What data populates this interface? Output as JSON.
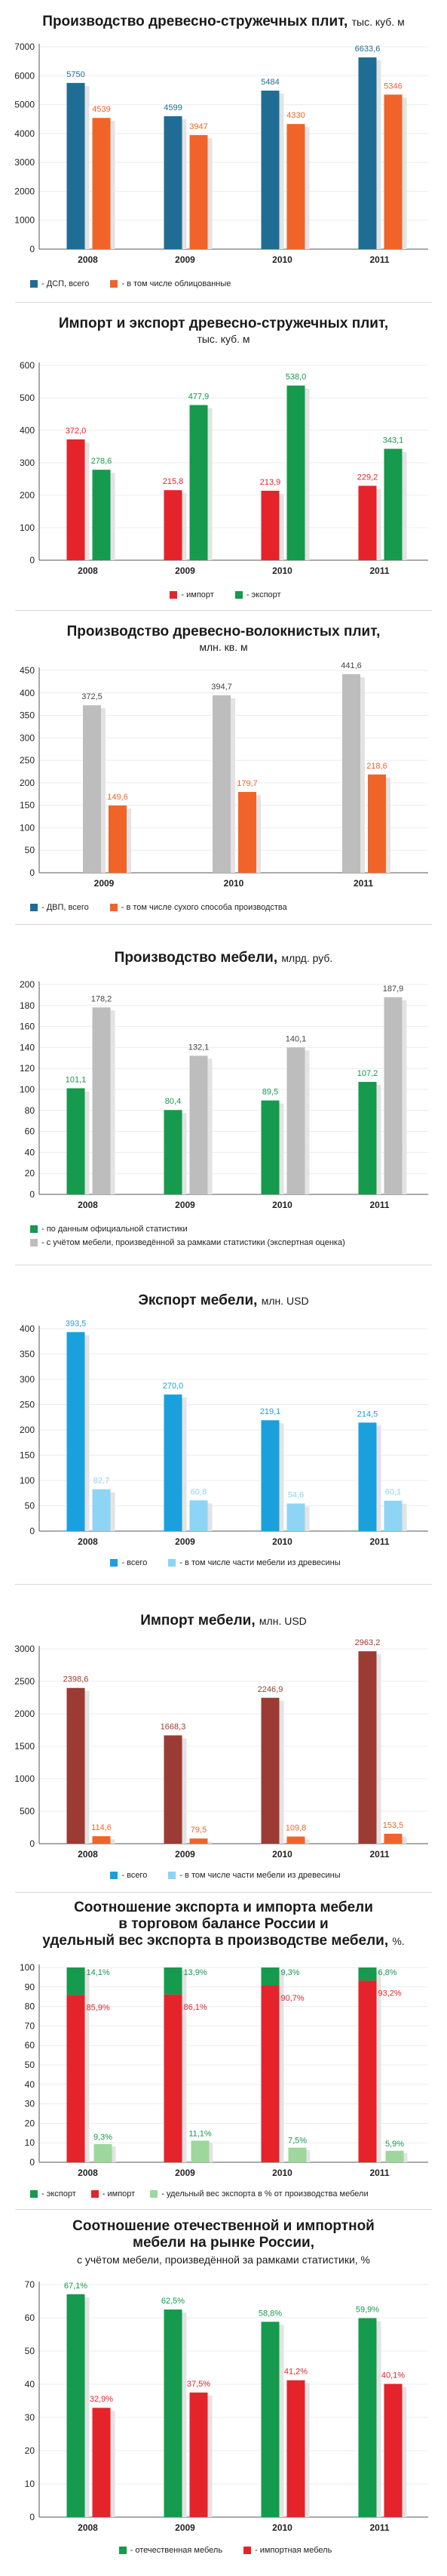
{
  "colors": {
    "darkblue": "#1f6d94",
    "orange": "#f0642a",
    "red": "#e5232b",
    "green": "#159a4e",
    "gray": "#bdbdbd",
    "lightgreen": "#9fd69b",
    "blue": "#1aa0dc",
    "lightblue": "#8ed4f4",
    "brown": "#9b3b33",
    "shadow": "#e3e3e3"
  },
  "chart_data": [
    {
      "type": "bar",
      "title": "Производство древесно-стружечных плит,",
      "unit": "тыс. куб. м",
      "categories": [
        "2008",
        "2009",
        "2010",
        "2011"
      ],
      "ylim": [
        0,
        7000
      ],
      "yticks": [
        0,
        1000,
        2000,
        3000,
        4000,
        5000,
        6000,
        7000
      ],
      "series": [
        {
          "name": "- ДСП, всего",
          "color": "darkblue",
          "values": [
            5750,
            4599,
            5484,
            6633.6
          ],
          "labels": [
            "5750",
            "4599",
            "5484",
            "6633,6"
          ]
        },
        {
          "name": "- в том числе облицованные",
          "color": "orange",
          "values": [
            4539,
            3947,
            4330,
            5346
          ],
          "labels": [
            "4539",
            "3947",
            "4330",
            "5346"
          ]
        }
      ]
    },
    {
      "type": "bar",
      "title": "Импорт и экспорт древесно-стружечных плит,",
      "subtitle": "тыс. куб. м",
      "categories": [
        "2008",
        "2009",
        "2010",
        "2011"
      ],
      "ylim": [
        0,
        600
      ],
      "yticks": [
        0,
        100,
        200,
        300,
        400,
        500,
        600
      ],
      "series": [
        {
          "name": "- импорт",
          "color": "red",
          "values": [
            372.0,
            215.8,
            213.9,
            229.2
          ],
          "labels": [
            "372,0",
            "215,8",
            "213,9",
            "229,2"
          ]
        },
        {
          "name": "- экспорт",
          "color": "green",
          "values": [
            278.6,
            477.9,
            538.0,
            343.1
          ],
          "labels": [
            "278,6",
            "477,9",
            "538,0",
            "343,1"
          ]
        }
      ]
    },
    {
      "type": "bar",
      "title": "Производство древесно-волокнистых плит,",
      "subtitle": "млн. кв. м",
      "categories": [
        "2009",
        "2010",
        "2011"
      ],
      "ylim": [
        0,
        450
      ],
      "yticks": [
        0,
        50,
        100,
        150,
        200,
        250,
        300,
        350,
        400,
        450
      ],
      "series": [
        {
          "name": "- ДВП, всего",
          "color": "gray",
          "values": [
            372.5,
            394.7,
            441.6
          ],
          "labels": [
            "372,5",
            "394,7",
            "441,6"
          ]
        },
        {
          "name": "- в том числе сухого способа производства",
          "color": "orange",
          "values": [
            149.6,
            179.7,
            218.6
          ],
          "labels": [
            "149,6",
            "179,7",
            "218,6"
          ]
        }
      ]
    },
    {
      "type": "bar",
      "title": "Производство мебели,",
      "unit": "млрд. руб.",
      "categories": [
        "2008",
        "2009",
        "2010",
        "2011"
      ],
      "ylim": [
        0,
        200
      ],
      "yticks": [
        0,
        20,
        40,
        60,
        80,
        100,
        120,
        140,
        160,
        180,
        200
      ],
      "series": [
        {
          "name": "- по данным официальной статистики",
          "color": "green",
          "values": [
            101.1,
            80.4,
            89.5,
            107.2
          ],
          "labels": [
            "101,1",
            "80,4",
            "89,5",
            "107,2"
          ]
        },
        {
          "name": "- с учётом мебели, произведённой за рамками статистики (экспертная оценка)",
          "color": "gray",
          "values": [
            178.2,
            132.1,
            140.1,
            187.9
          ],
          "labels": [
            "178,2",
            "132,1",
            "140,1",
            "187,9"
          ]
        }
      ]
    },
    {
      "type": "bar",
      "title": "Экспорт мебели,",
      "unit": "млн. USD",
      "categories": [
        "2008",
        "2009",
        "2010",
        "2011"
      ],
      "ylim": [
        0,
        400
      ],
      "yticks": [
        0,
        50,
        100,
        150,
        200,
        250,
        300,
        350,
        400
      ],
      "series": [
        {
          "name": "- всего",
          "color": "blue",
          "values": [
            393.5,
            270.0,
            219.1,
            214.5
          ],
          "labels": [
            "393,5",
            "270,0",
            "219,1",
            "214,5"
          ]
        },
        {
          "name": "- в том числе части мебели из древесины",
          "color": "lightblue",
          "values": [
            82.7,
            60.8,
            54.6,
            60.1
          ],
          "labels": [
            "82,7",
            "60,8",
            "54,6",
            "60,1"
          ]
        }
      ]
    },
    {
      "type": "bar",
      "title": "Импорт мебели,",
      "unit": "млн. USD",
      "categories": [
        "2008",
        "2009",
        "2010",
        "2011"
      ],
      "ylim": [
        0,
        3000
      ],
      "yticks": [
        0,
        500,
        1000,
        1500,
        2000,
        2500,
        3000
      ],
      "series": [
        {
          "name": "- всего",
          "color": "brown",
          "values": [
            2398.6,
            1668.3,
            2246.9,
            2963.2
          ],
          "labels": [
            "2398,6",
            "1668,3",
            "2246,9",
            "2963,2"
          ]
        },
        {
          "name": "- в том числе части мебели из древесины",
          "color": "orange",
          "values": [
            114.6,
            79.5,
            109.8,
            153.5
          ],
          "labels": [
            "114,6",
            "79,5",
            "109,8",
            "153,5"
          ]
        }
      ]
    },
    {
      "type": "bar",
      "title_lines": [
        "Соотношение экспорта и импорта мебели",
        "в торговом балансе России и"
      ],
      "title": "удельный вес экспорта в производстве мебели,",
      "unit": "%.",
      "categories": [
        "2008",
        "2009",
        "2010",
        "2011"
      ],
      "ylim": [
        0,
        100
      ],
      "yticks": [
        0,
        10,
        20,
        30,
        40,
        50,
        60,
        70,
        80,
        90,
        100
      ],
      "stacked_series": [
        {
          "name": "- экспорт",
          "color": "green",
          "values": [
            14.1,
            13.9,
            9.3,
            6.8
          ],
          "labels": [
            "14,1%",
            "13,9%",
            "9,3%",
            "6,8%"
          ]
        },
        {
          "name": "- импорт",
          "color": "red",
          "values": [
            85.9,
            86.1,
            90.7,
            93.2
          ],
          "labels": [
            "85,9%",
            "86,1%",
            "90,7%",
            "93,2%"
          ]
        }
      ],
      "side_series": {
        "name": "- удельный вес экспорта в % от производства мебели",
        "color": "lightgreen",
        "values": [
          9.3,
          11.1,
          7.5,
          5.9
        ],
        "labels": [
          "9,3%",
          "11,1%",
          "7,5%",
          "5,9%"
        ]
      }
    },
    {
      "type": "bar",
      "title_lines": [
        "Соотношение отечественной и импортной"
      ],
      "title": "мебели на рынке России,",
      "subtitle": "с учётом мебели, произведённой за рамками статистики, %",
      "categories": [
        "2008",
        "2009",
        "2010",
        "2011"
      ],
      "ylim": [
        0,
        70
      ],
      "yticks": [
        0,
        10,
        20,
        30,
        40,
        50,
        60,
        70
      ],
      "series": [
        {
          "name": "- отечественная мебель",
          "color": "green",
          "values": [
            67.1,
            62.5,
            58.8,
            59.9
          ],
          "labels": [
            "67,1%",
            "62,5%",
            "58,8%",
            "59,9%"
          ]
        },
        {
          "name": "- импортная мебель",
          "color": "red",
          "values": [
            32.9,
            37.5,
            41.2,
            40.1
          ],
          "labels": [
            "32,9%",
            "37,5%",
            "41,2%",
            "40,1%"
          ]
        }
      ]
    }
  ]
}
